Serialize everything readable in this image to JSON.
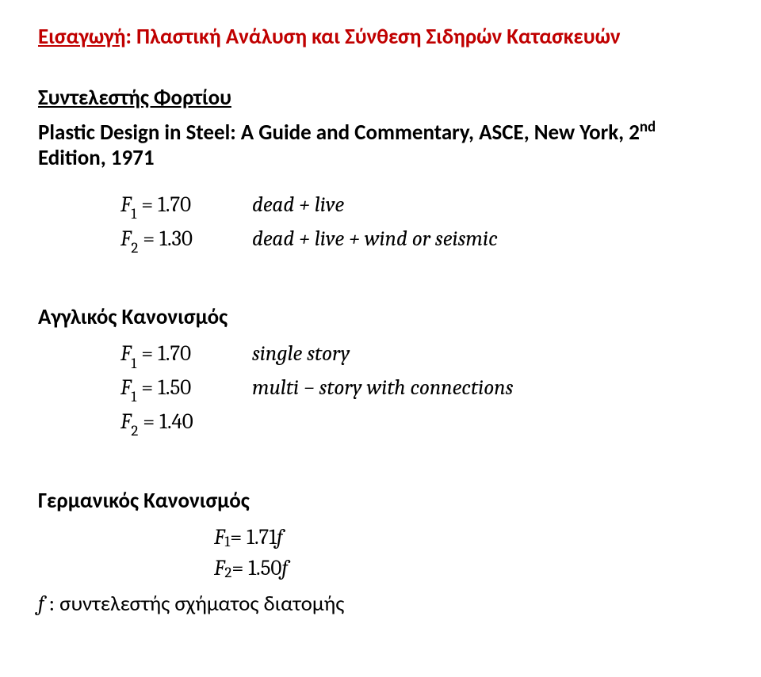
{
  "heading_prefix": "Εισαγωγή",
  "heading_rest": ": Πλαστική Ανάλυση και Σύνθεση Σιδηρών Κατασκευών",
  "section1_title": "Συντελεστής Φορτίου",
  "reference_line1": "Plastic Design in Steel: A Guide and Commentary, ASCE, New York, 2",
  "reference_sup": "nd",
  "reference_line2": "Edition, 1971",
  "block1": {
    "r1_left_sym": "F",
    "r1_left_sub": "1",
    "r1_left_eq": " = 1.70",
    "r1_right": "dead + live",
    "r2_left_sym": "F",
    "r2_left_sub": "2",
    "r2_left_eq": " = 1.30",
    "r2_right": "dead + live + wind or seismic"
  },
  "section2_title": "Αγγλικός Κανονισμός",
  "block2": {
    "r1_left_sym": "F",
    "r1_left_sub": "1",
    "r1_left_eq": " = 1.70",
    "r1_right": "single story",
    "r2_left_sym": "F",
    "r2_left_sub": "1",
    "r2_left_eq": " = 1.50",
    "r2_right": "multi − story with connections",
    "r3_left_sym": "F",
    "r3_left_sub": "2",
    "r3_left_eq": " = 1.40",
    "r3_right": ""
  },
  "section3_title": "Γερμανικός Κανονισμός",
  "block3": {
    "r1_sym": "F",
    "r1_sub": "1",
    "r1_eq": " = 1.71",
    "r1_tail": "f",
    "r2_sym": "F",
    "r2_sub": "2",
    "r2_eq": " = 1.50",
    "r2_tail": "f"
  },
  "footer_sym": "f",
  "footer_text": " : συντελεστής σχήματος διατομής"
}
